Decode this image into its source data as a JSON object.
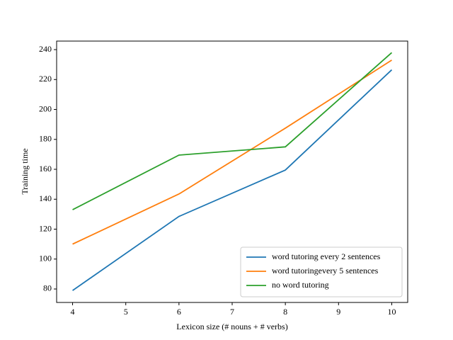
{
  "chart_data": {
    "type": "line",
    "x_label": "Lexicon size (# nouns + # verbs)",
    "y_label": "Training time",
    "x": [
      4,
      6,
      8,
      10
    ],
    "series": [
      {
        "name": "word tutoring every 2 sentences",
        "color": "#1f77b4",
        "values": [
          79,
          128.5,
          159.5,
          226.5
        ]
      },
      {
        "name": "word tutoringevery 5 sentences",
        "color": "#ff7f0e",
        "values": [
          110,
          143.5,
          187.5,
          233
        ]
      },
      {
        "name": "no word tutoring",
        "color": "#2ca02c",
        "values": [
          133,
          169.5,
          175,
          238
        ]
      }
    ],
    "xlim": [
      3.7,
      10.3
    ],
    "xticks": [
      4,
      5,
      6,
      7,
      8,
      9,
      10
    ],
    "ylim": [
      71,
      245.7
    ],
    "yticks": [
      80,
      100,
      120,
      140,
      160,
      180,
      200,
      220,
      240
    ],
    "legend": "lower right"
  }
}
